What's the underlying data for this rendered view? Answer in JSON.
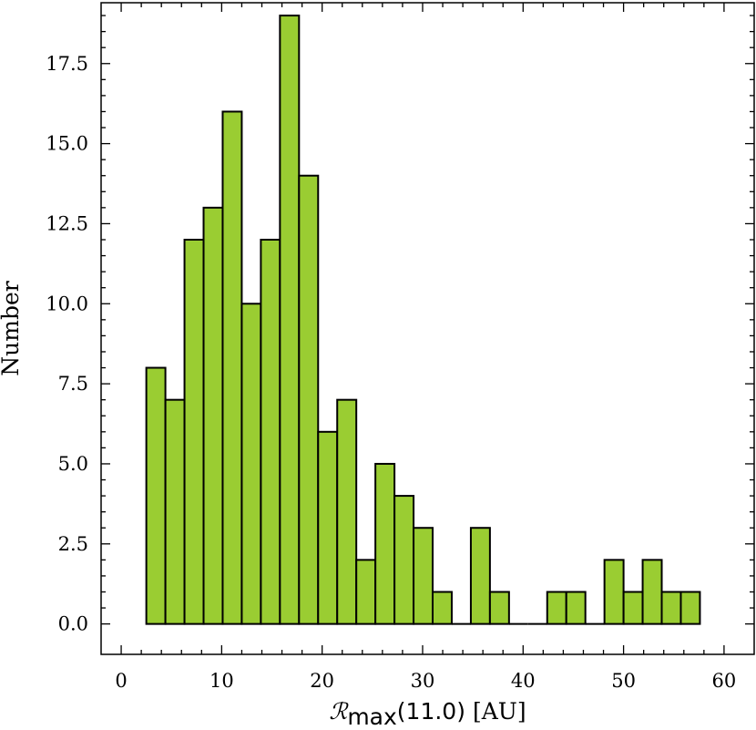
{
  "chart_data": {
    "type": "bar",
    "title": "",
    "xlabel": {
      "symbol": "ℛ",
      "subscript": "max",
      "argument": "(11.0)",
      "unit": "[AU]"
    },
    "ylabel": "Number",
    "xlim": [
      -2,
      63
    ],
    "ylim": [
      -0.95,
      19.4
    ],
    "x_ticks": [
      0,
      10,
      20,
      30,
      40,
      50,
      60
    ],
    "y_ticks": [
      0.0,
      2.5,
      5.0,
      7.5,
      10.0,
      12.5,
      15.0,
      17.5
    ],
    "x_tick_labels": [
      "0",
      "10",
      "20",
      "30",
      "40",
      "50",
      "60"
    ],
    "y_tick_labels": [
      "0.0",
      "2.5",
      "5.0",
      "7.5",
      "10.0",
      "12.5",
      "15.0",
      "17.5"
    ],
    "bin_start": 2.5,
    "bin_width": 1.9,
    "values": [
      8,
      7,
      12,
      13,
      16,
      10,
      12,
      19,
      14,
      6,
      7,
      2,
      5,
      4,
      3,
      1,
      0,
      3,
      1,
      0,
      0,
      1,
      1,
      0,
      2,
      1,
      2,
      1,
      1
    ],
    "grid": false,
    "legend": "none",
    "bar_color": "#9acd32",
    "edge_color": "#000000"
  }
}
